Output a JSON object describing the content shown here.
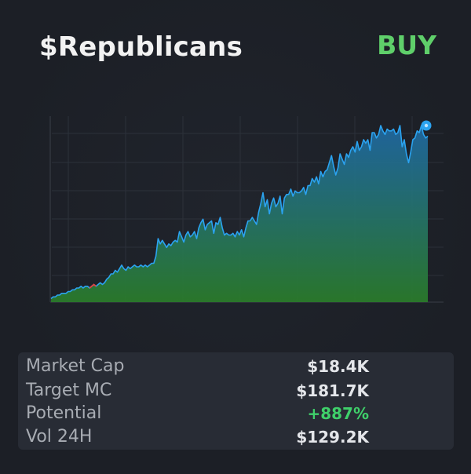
{
  "header": {
    "title": "$Republicans",
    "action_label": "BUY",
    "action_color": "#5fcf6a"
  },
  "stats": [
    {
      "label": "Market Cap",
      "value": "$18.4K",
      "color": "#e4e6ea"
    },
    {
      "label": "Target MC",
      "value": "$181.7K",
      "color": "#e4e6ea"
    },
    {
      "label": "Potential",
      "value": "+887%",
      "color": "#3fd06a"
    },
    {
      "label": "Vol 24H",
      "value": "$129.2K",
      "color": "#e4e6ea"
    }
  ],
  "chart_data": {
    "type": "area",
    "grid": true,
    "line_color": "#2ba3f0",
    "fill_top_color": "#1f6fae",
    "fill_bottom_color": "#2a7a2a",
    "dip_color": "#e04040",
    "ylim": [
      0,
      1
    ],
    "values": [
      0.02,
      0.03,
      0.03,
      0.04,
      0.04,
      0.05,
      0.05,
      0.05,
      0.06,
      0.06,
      0.07,
      0.07,
      0.08,
      0.08,
      0.09,
      0.08,
      0.09,
      0.09,
      0.08,
      0.09,
      0.1,
      0.09,
      0.1,
      0.11,
      0.1,
      0.11,
      0.13,
      0.14,
      0.16,
      0.16,
      0.18,
      0.17,
      0.19,
      0.21,
      0.19,
      0.18,
      0.2,
      0.19,
      0.2,
      0.21,
      0.2,
      0.2,
      0.21,
      0.2,
      0.21,
      0.2,
      0.21,
      0.22,
      0.22,
      0.26,
      0.36,
      0.33,
      0.35,
      0.33,
      0.31,
      0.33,
      0.32,
      0.34,
      0.35,
      0.34,
      0.4,
      0.37,
      0.34,
      0.38,
      0.4,
      0.37,
      0.38,
      0.4,
      0.36,
      0.42,
      0.45,
      0.47,
      0.41,
      0.44,
      0.45,
      0.46,
      0.39,
      0.45,
      0.44,
      0.48,
      0.42,
      0.38,
      0.39,
      0.38,
      0.38,
      0.39,
      0.37,
      0.4,
      0.38,
      0.41,
      0.37,
      0.42,
      0.46,
      0.46,
      0.48,
      0.46,
      0.44,
      0.51,
      0.56,
      0.62,
      0.54,
      0.58,
      0.5,
      0.56,
      0.59,
      0.54,
      0.56,
      0.6,
      0.5,
      0.59,
      0.61,
      0.61,
      0.64,
      0.6,
      0.63,
      0.62,
      0.62,
      0.63,
      0.65,
      0.61,
      0.66,
      0.66,
      0.7,
      0.68,
      0.71,
      0.67,
      0.74,
      0.71,
      0.74,
      0.75,
      0.79,
      0.83,
      0.77,
      0.72,
      0.76,
      0.84,
      0.81,
      0.78,
      0.84,
      0.82,
      0.86,
      0.88,
      0.85,
      0.91,
      0.86,
      0.88,
      0.92,
      0.9,
      0.92,
      0.86,
      0.96,
      0.96,
      0.93,
      0.95,
      1.0,
      0.97,
      0.95,
      0.98,
      0.97,
      0.97,
      0.98,
      0.95,
      0.96,
      1.0,
      0.88,
      0.92,
      0.84,
      0.79,
      0.85,
      0.92,
      0.93,
      0.97,
      0.96,
      1.0,
      0.95,
      0.93,
      0.94
    ]
  }
}
